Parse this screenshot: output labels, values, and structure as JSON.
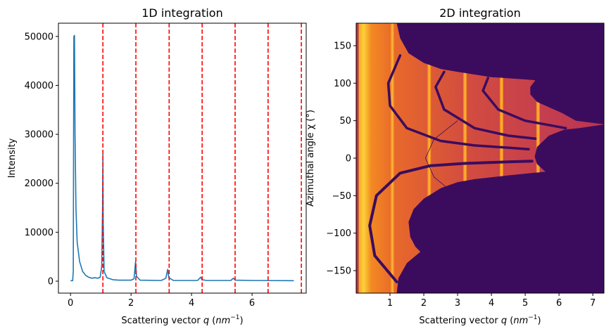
{
  "chart_data": [
    {
      "type": "line",
      "title": "1D integration",
      "xlabel": {
        "text": "Scattering vector ",
        "var": "q",
        "unit": "nm",
        "exp": "−1"
      },
      "ylabel": "Intensity",
      "xlim": [
        -0.4,
        7.79
      ],
      "ylim": [
        -2440,
        52700
      ],
      "xticks": [
        0,
        2,
        4,
        6
      ],
      "yticks": [
        0,
        10000,
        20000,
        30000,
        40000,
        50000
      ],
      "grid": false,
      "series": [
        {
          "color": "#1f77b4",
          "x": [
            0,
            0.07,
            0.09,
            0.11,
            0.13,
            0.15,
            0.18,
            0.22,
            0.3,
            0.4,
            0.5,
            0.6,
            0.7,
            0.8,
            0.9,
            0.98,
            1.03,
            1.06,
            1.07,
            1.08,
            1.11,
            1.2,
            1.3,
            1.4,
            1.6,
            2.0,
            2.1,
            2.15,
            2.18,
            2.3,
            3.0,
            3.15,
            3.21,
            3.25,
            3.4,
            4.2,
            4.3,
            4.35,
            4.5,
            5.3,
            5.38,
            5.45,
            6.0,
            7.38
          ],
          "y": [
            100,
            100,
            2000,
            50000,
            50200,
            30000,
            15000,
            8000,
            4000,
            2000,
            1200,
            800,
            600,
            700,
            600,
            800,
            3000,
            15000,
            26000,
            12000,
            2000,
            700,
            500,
            300,
            200,
            200,
            500,
            4000,
            1000,
            200,
            150,
            600,
            2400,
            700,
            150,
            150,
            800,
            300,
            150,
            150,
            600,
            200,
            150,
            100
          ]
        }
      ],
      "vlines": {
        "color": "#ff0000",
        "style": "dashed",
        "x": [
          1.07,
          2.16,
          3.26,
          4.35,
          5.44,
          6.53,
          7.63
        ]
      }
    },
    {
      "type": "heatmap",
      "title": "2D integration",
      "xlabel": {
        "text": "Scattering vector ",
        "var": "q",
        "unit": "nm",
        "exp": "−1"
      },
      "ylabel": "Azimuthal angle χ (°)",
      "xlim": [
        0,
        7.33
      ],
      "ylim": [
        -180,
        180
      ],
      "xticks": [
        1,
        2,
        3,
        4,
        5,
        6,
        7
      ],
      "yticks": [
        -150,
        -100,
        -50,
        0,
        50,
        100,
        150
      ],
      "colormap": "inferno",
      "ring_positions_q": [
        1.07,
        2.16,
        3.22,
        4.3,
        5.38
      ],
      "colors": {
        "masked": "#3b0c5e",
        "high": "#fcd23a",
        "mid": "#e8692b",
        "low": "#c23c4f"
      }
    }
  ]
}
